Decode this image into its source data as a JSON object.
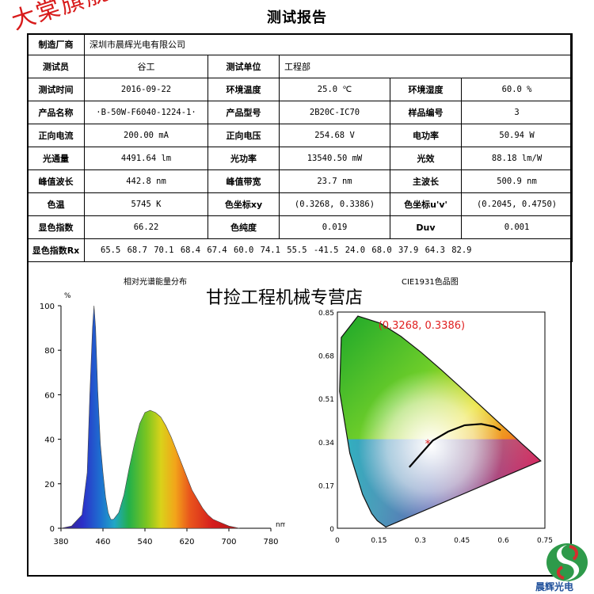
{
  "title": "测试报告",
  "stamp_text": "大棠旗舰店",
  "banner": "甘捡工程机械专营店",
  "manufacturer": {
    "label": "制造厂商",
    "value": "深圳市晨辉光电有限公司"
  },
  "rows": [
    [
      {
        "t": "测试员",
        "lbl": true
      },
      {
        "t": "谷工"
      },
      {
        "t": "测试单位",
        "lbl": true
      },
      {
        "t": "工程部",
        "span": 3,
        "left": true
      }
    ],
    [
      {
        "t": "测试时间",
        "lbl": true
      },
      {
        "t": "2016-09-22",
        "mono": true
      },
      {
        "t": "环境温度",
        "lbl": true
      },
      {
        "t": "25.0 ℃",
        "mono": true
      },
      {
        "t": "环境湿度",
        "lbl": true
      },
      {
        "t": "60.0 %",
        "mono": true
      }
    ],
    [
      {
        "t": "产品名称",
        "lbl": true
      },
      {
        "t": "·B-50W-F6040-1224-1·",
        "mono": true
      },
      {
        "t": "产品型号",
        "lbl": true
      },
      {
        "t": "2B20C-IC70",
        "mono": true
      },
      {
        "t": "样品编号",
        "lbl": true
      },
      {
        "t": "3",
        "mono": true
      }
    ],
    [
      {
        "t": "正向电流",
        "lbl": true
      },
      {
        "t": "200.00 mA",
        "mono": true
      },
      {
        "t": "正向电压",
        "lbl": true
      },
      {
        "t": "254.68 V",
        "mono": true
      },
      {
        "t": "电功率",
        "lbl": true
      },
      {
        "t": "50.94 W",
        "mono": true
      }
    ],
    [
      {
        "t": "光通量",
        "lbl": true
      },
      {
        "t": "4491.64 lm",
        "mono": true
      },
      {
        "t": "光功率",
        "lbl": true
      },
      {
        "t": "13540.50 mW",
        "mono": true
      },
      {
        "t": "光效",
        "lbl": true
      },
      {
        "t": "88.18 lm/W",
        "mono": true
      }
    ],
    [
      {
        "t": "峰值波长",
        "lbl": true
      },
      {
        "t": "442.8 nm",
        "mono": true
      },
      {
        "t": "峰值带宽",
        "lbl": true
      },
      {
        "t": "23.7 nm",
        "mono": true
      },
      {
        "t": "主波长",
        "lbl": true
      },
      {
        "t": "500.9 nm",
        "mono": true
      }
    ],
    [
      {
        "t": "色温",
        "lbl": true
      },
      {
        "t": "5745 K",
        "mono": true
      },
      {
        "t": "色坐标xy",
        "lbl": true
      },
      {
        "t": "(0.3268, 0.3386)",
        "mono": true
      },
      {
        "t": "色坐标u'v'",
        "lbl": true
      },
      {
        "t": "(0.2045, 0.4750)",
        "mono": true
      }
    ],
    [
      {
        "t": "显色指数",
        "lbl": true
      },
      {
        "t": "66.22",
        "mono": true
      },
      {
        "t": "色纯度",
        "lbl": true
      },
      {
        "t": "0.019",
        "mono": true
      },
      {
        "t": "Duv",
        "lbl": true
      },
      {
        "t": "0.001",
        "mono": true
      }
    ]
  ],
  "rx": {
    "label": "显色指数Rx",
    "values": "65.5 68.7 70.1 68.4  67.4 60.0 74.1 55.5  -41.5 24.0 68.0 37.9  64.3 82.9"
  },
  "spectrum_chart": {
    "type": "area",
    "title": "相对光谱能量分布",
    "ylabel": "%",
    "xunit": "nm",
    "xlim": [
      380,
      780
    ],
    "ylim": [
      0,
      100
    ],
    "xticks": [
      "380",
      "460",
      "540",
      "620",
      "700",
      "780"
    ],
    "yticks": [
      "0",
      "20",
      "40",
      "60",
      "80",
      "100"
    ],
    "x": [
      380,
      400,
      420,
      430,
      435,
      440,
      443,
      446,
      450,
      455,
      460,
      465,
      470,
      475,
      480,
      490,
      500,
      510,
      520,
      530,
      540,
      550,
      560,
      570,
      580,
      590,
      600,
      610,
      620,
      630,
      640,
      650,
      660,
      670,
      680,
      690,
      700,
      710,
      720
    ],
    "y": [
      0,
      1,
      6,
      25,
      60,
      90,
      100,
      90,
      62,
      38,
      25,
      14,
      7,
      4,
      4,
      7,
      15,
      27,
      38,
      47,
      52,
      53,
      52,
      50,
      46,
      41,
      35,
      29,
      23,
      17,
      13,
      9,
      6,
      4,
      3,
      2,
      1,
      0.5,
      0
    ]
  },
  "cie_chart": {
    "type": "scatter",
    "title": "CIE1931色品图",
    "xlim": [
      0,
      0.75
    ],
    "ylim": [
      0,
      0.85
    ],
    "xticks": [
      "0",
      "0.15",
      "0.3",
      "0.45",
      "0.6",
      "0.75"
    ],
    "yticks": [
      "0",
      "0.17",
      "0.34",
      "0.51",
      "0.68",
      "0.85"
    ],
    "point": {
      "x": 0.3268,
      "y": 0.3386,
      "label": "(0.3268, 0.3386)"
    }
  },
  "logo_text": "晨辉光电",
  "colors": {
    "stamp": "#d81b1b",
    "point": "#e02020",
    "logo_blue": "#1e4f9a",
    "logo_green": "#2e9a4a",
    "logo_red": "#d32f2f"
  }
}
